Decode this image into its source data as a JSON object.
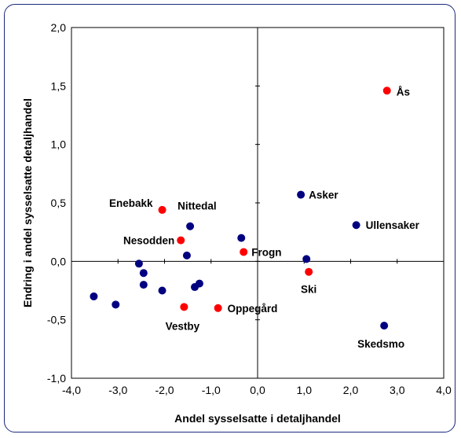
{
  "chart_data": {
    "type": "scatter",
    "title": "",
    "xlabel": "Andel sysselsatte i detaljhandel",
    "ylabel": "Endring i andel sysselsatte detaljhandel",
    "xlim": [
      -4.0,
      4.0
    ],
    "ylim": [
      -1.0,
      2.0
    ],
    "x_ticks": [
      "-4,0",
      "-3,0",
      "-2,0",
      "-1,0",
      "0,0",
      "1,0",
      "2,0",
      "3,0",
      "4,0"
    ],
    "y_ticks": [
      "2,0",
      "1,5",
      "1,0",
      "0,5",
      "0,0",
      "-0,5",
      "-1,0"
    ],
    "grid": false,
    "colors": {
      "highlight": "#ff0000",
      "other": "#000080"
    },
    "points": [
      {
        "x": 2.78,
        "y": 1.46,
        "label": "Ås",
        "group": "highlight"
      },
      {
        "x": 0.93,
        "y": 0.57,
        "label": "Asker",
        "group": "other"
      },
      {
        "x": 2.12,
        "y": 0.31,
        "label": "Ullensaker",
        "group": "other"
      },
      {
        "x": -2.05,
        "y": 0.44,
        "label": "Enebakk",
        "group": "highlight"
      },
      {
        "x": -1.45,
        "y": 0.3,
        "label": "Nittedal",
        "group": "other"
      },
      {
        "x": -1.65,
        "y": 0.18,
        "label": "Nesodden",
        "group": "highlight"
      },
      {
        "x": -0.3,
        "y": 0.08,
        "label": "Frogn",
        "group": "highlight"
      },
      {
        "x": 1.1,
        "y": -0.09,
        "label": "Ski",
        "group": "highlight"
      },
      {
        "x": -1.58,
        "y": -0.39,
        "label": "Vestby",
        "group": "highlight"
      },
      {
        "x": -0.85,
        "y": -0.4,
        "label": "Oppegård",
        "group": "highlight"
      },
      {
        "x": 2.72,
        "y": -0.55,
        "label": "Skedsmo",
        "group": "other"
      },
      {
        "x": -0.35,
        "y": 0.2,
        "label": "",
        "group": "other"
      },
      {
        "x": -1.52,
        "y": 0.05,
        "label": "",
        "group": "other"
      },
      {
        "x": 1.05,
        "y": 0.02,
        "label": "",
        "group": "other"
      },
      {
        "x": -2.55,
        "y": -0.02,
        "label": "",
        "group": "other"
      },
      {
        "x": -2.45,
        "y": -0.1,
        "label": "",
        "group": "other"
      },
      {
        "x": -2.45,
        "y": -0.2,
        "label": "",
        "group": "other"
      },
      {
        "x": -2.05,
        "y": -0.25,
        "label": "",
        "group": "other"
      },
      {
        "x": -1.35,
        "y": -0.22,
        "label": "",
        "group": "other"
      },
      {
        "x": -1.25,
        "y": -0.19,
        "label": "",
        "group": "other"
      },
      {
        "x": -3.52,
        "y": -0.3,
        "label": "",
        "group": "other"
      },
      {
        "x": -3.05,
        "y": -0.37,
        "label": "",
        "group": "other"
      }
    ]
  }
}
